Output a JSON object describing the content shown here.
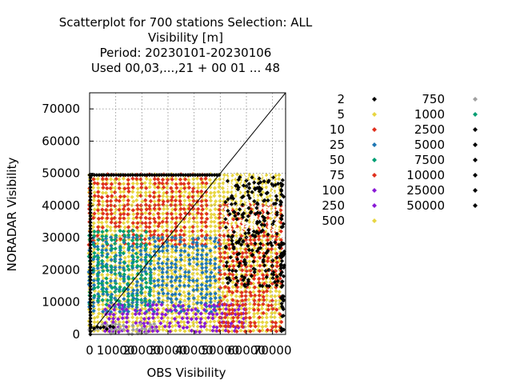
{
  "chart_data": {
    "type": "scatter",
    "title_lines": [
      "Scatterplot for  700 stations Selection: ALL",
      "Visibility [m]",
      "Period: 20230101-20230106",
      "Used  00,03,...,21  + 00 01 ... 48"
    ],
    "xlabel": "OBS Visibility",
    "ylabel": "NORADAR Visibility",
    "xlim": [
      0,
      75000
    ],
    "ylim": [
      0,
      75000
    ],
    "x_ticks": [
      0,
      10000,
      20000,
      30000,
      40000,
      50000,
      60000,
      70000
    ],
    "y_ticks": [
      0,
      10000,
      20000,
      30000,
      40000,
      50000,
      60000,
      70000
    ],
    "x_tick_labels": [
      "0",
      "10000",
      "20000",
      "30000",
      "40000",
      "50000",
      "60000",
      "70000"
    ],
    "y_tick_labels": [
      "0",
      "10000",
      "20000",
      "30000",
      "40000",
      "50000",
      "60000",
      "70000"
    ],
    "grid": true,
    "diagonal": true,
    "legend_placement": "right",
    "legend": [
      {
        "label": "2",
        "color": "#000000"
      },
      {
        "label": "5",
        "color": "#e8d642"
      },
      {
        "label": "10",
        "color": "#e0301e"
      },
      {
        "label": "25",
        "color": "#1f77b4"
      },
      {
        "label": "50",
        "color": "#009e73"
      },
      {
        "label": "75",
        "color": "#e0301e"
      },
      {
        "label": "100",
        "color": "#8a1ad6"
      },
      {
        "label": "250",
        "color": "#8a1ad6"
      },
      {
        "label": "500",
        "color": "#e8d642"
      },
      {
        "label": "750",
        "color": "#a0a0a0"
      },
      {
        "label": "1000",
        "color": "#009e73"
      },
      {
        "label": "2500",
        "color": "#000000"
      },
      {
        "label": "5000",
        "color": "#000000"
      },
      {
        "label": "7500",
        "color": "#000000"
      },
      {
        "label": "10000",
        "color": "#000000"
      },
      {
        "label": "25000",
        "color": "#000000"
      },
      {
        "label": "50000",
        "color": "#000000"
      }
    ],
    "regions": [
      {
        "name": "background-yellow",
        "color": "#e8d642",
        "x": [
          0,
          74000
        ],
        "y": [
          0,
          49500
        ]
      },
      {
        "name": "red-upper",
        "color": "#e0301e",
        "x": [
          0,
          46000
        ],
        "y": [
          28000,
          49500
        ]
      },
      {
        "name": "blue-mid",
        "color": "#1f77b4",
        "x": [
          0,
          50000
        ],
        "y": [
          6000,
          30000
        ]
      },
      {
        "name": "green-mid",
        "color": "#009e73",
        "x": [
          0,
          24000
        ],
        "y": [
          8000,
          32000
        ]
      },
      {
        "name": "purple-low",
        "color": "#8a1ad6",
        "x": [
          6000,
          60000
        ],
        "y": [
          0,
          9000
        ]
      },
      {
        "name": "orange-right",
        "color": "#e0301e",
        "x": [
          50000,
          74000
        ],
        "y": [
          0,
          40000
        ]
      },
      {
        "name": "grey-low",
        "color": "#a0a0a0",
        "x": [
          0,
          25000
        ],
        "y": [
          0,
          3000
        ]
      },
      {
        "name": "white-upper-right",
        "color": "#ffffff",
        "x": [
          52000,
          72000
        ],
        "y": [
          32000,
          49500
        ]
      }
    ]
  }
}
